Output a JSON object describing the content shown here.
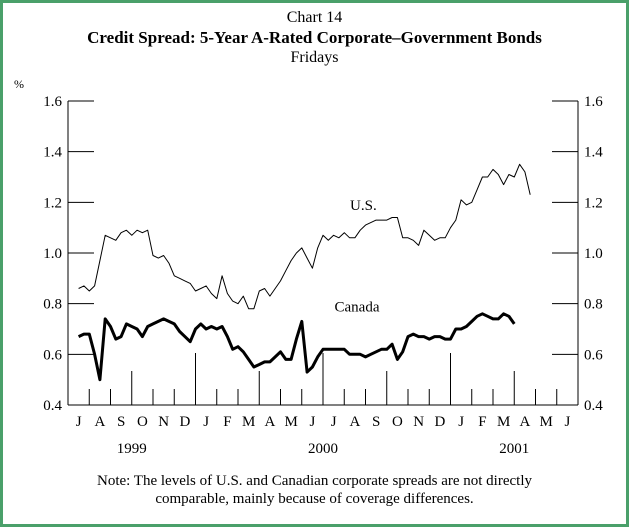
{
  "chart_data": {
    "type": "line",
    "chart_number": "Chart 14",
    "title": "Credit Spread: 5-Year A-Rated Corporate–Government Bonds",
    "subtitle": "Fridays",
    "ylabel": "%",
    "ylim": [
      0.4,
      1.6
    ],
    "yticks": [
      "0.4",
      "0.6",
      "0.8",
      "1.0",
      "1.2",
      "1.4",
      "1.6"
    ],
    "ytick_values": [
      0.4,
      0.6,
      0.8,
      1.0,
      1.2,
      1.4,
      1.6
    ],
    "grid": false,
    "months": [
      "J",
      "A",
      "S",
      "O",
      "N",
      "D",
      "J",
      "F",
      "M",
      "A",
      "M",
      "J",
      "J",
      "A",
      "S",
      "O",
      "N",
      "D",
      "J",
      "F",
      "M",
      "A",
      "M",
      "J"
    ],
    "years": [
      {
        "label": "1999",
        "month_span": [
          0,
          6
        ]
      },
      {
        "label": "2000",
        "month_span": [
          6,
          18
        ]
      },
      {
        "label": "2001",
        "month_span": [
          18,
          24
        ]
      }
    ],
    "x_unit": "months since July 1999",
    "series": [
      {
        "name": "U.S.",
        "color": "#000000",
        "line_width": 1,
        "label_anchor": {
          "x": 13.4,
          "y": 1.17
        },
        "points": [
          [
            0.0,
            0.86
          ],
          [
            0.25,
            0.87
          ],
          [
            0.5,
            0.85
          ],
          [
            0.75,
            0.87
          ],
          [
            1.0,
            0.97
          ],
          [
            1.25,
            1.07
          ],
          [
            1.5,
            1.06
          ],
          [
            1.75,
            1.05
          ],
          [
            2.0,
            1.08
          ],
          [
            2.25,
            1.09
          ],
          [
            2.5,
            1.07
          ],
          [
            2.75,
            1.09
          ],
          [
            3.0,
            1.08
          ],
          [
            3.25,
            1.09
          ],
          [
            3.5,
            0.99
          ],
          [
            3.75,
            0.98
          ],
          [
            4.0,
            0.99
          ],
          [
            4.25,
            0.96
          ],
          [
            4.5,
            0.91
          ],
          [
            4.75,
            0.9
          ],
          [
            5.0,
            0.89
          ],
          [
            5.25,
            0.88
          ],
          [
            5.5,
            0.85
          ],
          [
            5.75,
            0.86
          ],
          [
            6.0,
            0.87
          ],
          [
            6.25,
            0.84
          ],
          [
            6.5,
            0.82
          ],
          [
            6.75,
            0.91
          ],
          [
            7.0,
            0.84
          ],
          [
            7.25,
            0.81
          ],
          [
            7.5,
            0.8
          ],
          [
            7.75,
            0.83
          ],
          [
            8.0,
            0.78
          ],
          [
            8.25,
            0.78
          ],
          [
            8.5,
            0.85
          ],
          [
            8.75,
            0.86
          ],
          [
            9.0,
            0.83
          ],
          [
            9.25,
            0.86
          ],
          [
            9.5,
            0.89
          ],
          [
            9.75,
            0.93
          ],
          [
            10.0,
            0.97
          ],
          [
            10.25,
            1.0
          ],
          [
            10.5,
            1.02
          ],
          [
            10.75,
            0.98
          ],
          [
            11.0,
            0.94
          ],
          [
            11.25,
            1.02
          ],
          [
            11.5,
            1.07
          ],
          [
            11.75,
            1.05
          ],
          [
            12.0,
            1.07
          ],
          [
            12.25,
            1.06
          ],
          [
            12.5,
            1.08
          ],
          [
            12.75,
            1.06
          ],
          [
            13.0,
            1.06
          ],
          [
            13.25,
            1.09
          ],
          [
            13.5,
            1.11
          ],
          [
            13.75,
            1.12
          ],
          [
            14.0,
            1.13
          ],
          [
            14.25,
            1.13
          ],
          [
            14.5,
            1.13
          ],
          [
            14.75,
            1.14
          ],
          [
            15.0,
            1.14
          ],
          [
            15.25,
            1.06
          ],
          [
            15.5,
            1.06
          ],
          [
            15.75,
            1.05
          ],
          [
            16.0,
            1.03
          ],
          [
            16.25,
            1.09
          ],
          [
            16.5,
            1.07
          ],
          [
            16.75,
            1.05
          ],
          [
            17.0,
            1.06
          ],
          [
            17.25,
            1.06
          ],
          [
            17.5,
            1.1
          ],
          [
            17.75,
            1.13
          ],
          [
            18.0,
            1.21
          ],
          [
            18.25,
            1.19
          ],
          [
            18.5,
            1.2
          ],
          [
            18.75,
            1.25
          ],
          [
            19.0,
            1.3
          ],
          [
            19.25,
            1.3
          ],
          [
            19.5,
            1.33
          ],
          [
            19.75,
            1.31
          ],
          [
            20.0,
            1.27
          ],
          [
            20.25,
            1.31
          ],
          [
            20.5,
            1.3
          ],
          [
            20.75,
            1.35
          ],
          [
            21.0,
            1.32
          ],
          [
            21.25,
            1.23
          ]
        ]
      },
      {
        "name": "Canada",
        "color": "#000000",
        "line_width": 3,
        "label_anchor": {
          "x": 13.1,
          "y": 0.77
        },
        "points": [
          [
            0.0,
            0.67
          ],
          [
            0.25,
            0.68
          ],
          [
            0.5,
            0.68
          ],
          [
            0.75,
            0.6
          ],
          [
            1.0,
            0.5
          ],
          [
            1.25,
            0.74
          ],
          [
            1.5,
            0.71
          ],
          [
            1.75,
            0.66
          ],
          [
            2.0,
            0.67
          ],
          [
            2.25,
            0.72
          ],
          [
            2.5,
            0.71
          ],
          [
            2.75,
            0.7
          ],
          [
            3.0,
            0.67
          ],
          [
            3.25,
            0.71
          ],
          [
            3.5,
            0.72
          ],
          [
            3.75,
            0.73
          ],
          [
            4.0,
            0.74
          ],
          [
            4.25,
            0.73
          ],
          [
            4.5,
            0.72
          ],
          [
            4.75,
            0.69
          ],
          [
            5.0,
            0.67
          ],
          [
            5.25,
            0.65
          ],
          [
            5.5,
            0.7
          ],
          [
            5.75,
            0.72
          ],
          [
            6.0,
            0.7
          ],
          [
            6.25,
            0.71
          ],
          [
            6.5,
            0.7
          ],
          [
            6.75,
            0.71
          ],
          [
            7.0,
            0.67
          ],
          [
            7.25,
            0.62
          ],
          [
            7.5,
            0.63
          ],
          [
            7.75,
            0.61
          ],
          [
            8.0,
            0.58
          ],
          [
            8.25,
            0.55
          ],
          [
            8.5,
            0.56
          ],
          [
            8.75,
            0.57
          ],
          [
            9.0,
            0.57
          ],
          [
            9.25,
            0.59
          ],
          [
            9.5,
            0.61
          ],
          [
            9.75,
            0.58
          ],
          [
            10.0,
            0.58
          ],
          [
            10.25,
            0.66
          ],
          [
            10.5,
            0.73
          ],
          [
            10.75,
            0.53
          ],
          [
            11.0,
            0.55
          ],
          [
            11.25,
            0.59
          ],
          [
            11.5,
            0.62
          ],
          [
            11.75,
            0.62
          ],
          [
            12.0,
            0.62
          ],
          [
            12.25,
            0.62
          ],
          [
            12.5,
            0.62
          ],
          [
            12.75,
            0.6
          ],
          [
            13.0,
            0.6
          ],
          [
            13.25,
            0.6
          ],
          [
            13.5,
            0.59
          ],
          [
            13.75,
            0.6
          ],
          [
            14.0,
            0.61
          ],
          [
            14.25,
            0.62
          ],
          [
            14.5,
            0.62
          ],
          [
            14.75,
            0.64
          ],
          [
            15.0,
            0.58
          ],
          [
            15.25,
            0.61
          ],
          [
            15.5,
            0.67
          ],
          [
            15.75,
            0.68
          ],
          [
            16.0,
            0.67
          ],
          [
            16.25,
            0.67
          ],
          [
            16.5,
            0.66
          ],
          [
            16.75,
            0.67
          ],
          [
            17.0,
            0.67
          ],
          [
            17.25,
            0.66
          ],
          [
            17.5,
            0.66
          ],
          [
            17.75,
            0.7
          ],
          [
            18.0,
            0.7
          ],
          [
            18.25,
            0.71
          ],
          [
            18.5,
            0.73
          ],
          [
            18.75,
            0.75
          ],
          [
            19.0,
            0.76
          ],
          [
            19.25,
            0.75
          ],
          [
            19.5,
            0.74
          ],
          [
            19.75,
            0.74
          ],
          [
            20.0,
            0.76
          ],
          [
            20.25,
            0.75
          ],
          [
            20.5,
            0.72
          ]
        ]
      }
    ]
  },
  "note": {
    "line1": "Note: The levels of U.S. and Canadian corporate spreads are not directly",
    "line2": "comparable, mainly because of coverage differences."
  }
}
